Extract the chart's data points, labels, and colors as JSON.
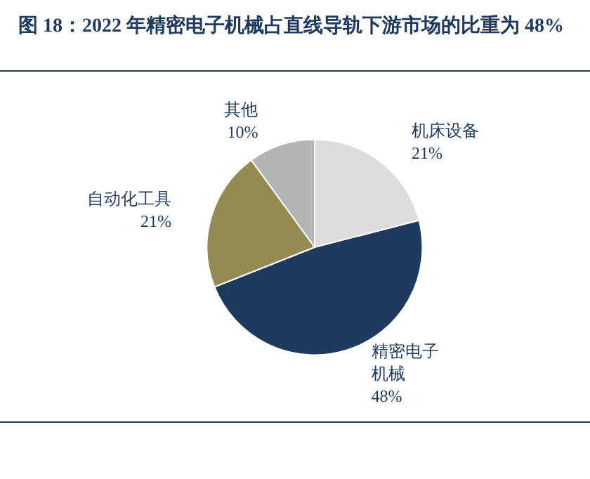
{
  "chart_data": {
    "type": "pie",
    "title": "图 18：2022 年精密电子机械占直线导轨下游市场的比重为 48%",
    "categories": [
      "机床设备",
      "精密电子机械",
      "自动化工具",
      "其他"
    ],
    "values": [
      21,
      48,
      21,
      10
    ],
    "colors": [
      "#dcdcdc",
      "#1f3a5f",
      "#948a54",
      "#b4b4b4"
    ],
    "value_labels": [
      "21%",
      "48%",
      "21%",
      "10%"
    ]
  }
}
